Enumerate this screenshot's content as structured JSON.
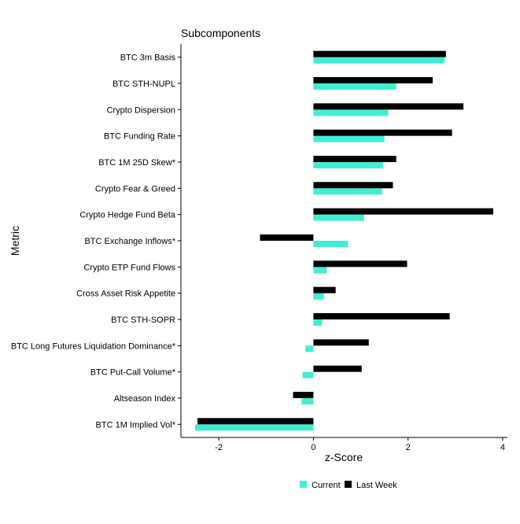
{
  "chart_data": {
    "type": "bar",
    "orientation": "horizontal",
    "title": "Subcomponents",
    "xlabel": "z-Score",
    "ylabel": "Metric",
    "xlim": [
      -2.8,
      4.1
    ],
    "xticks": [
      -2,
      0,
      2,
      4
    ],
    "tick_labels": [
      "-2",
      "0",
      "2",
      "4"
    ],
    "grid": false,
    "legend_position": "bottom",
    "categories": [
      "BTC 3m Basis",
      "BTC STH-NUPL",
      "Crypto Dispersion",
      "BTC Funding Rate",
      "BTC 1M 25D Skew*",
      "Crypto Fear & Greed",
      "Crypto Hedge Fund Beta",
      "BTC Exchange Inflows*",
      "Crypto ETP Fund Flows",
      "Cross Asset Risk Appetite",
      "BTC STH-SOPR",
      "BTC Long Futures Liquidation Dominance*",
      "BTC Put-Call Volume*",
      "Altseason Index",
      "BTC 1M Implied Vol*"
    ],
    "series": [
      {
        "name": "Current",
        "color": "#40EFD1",
        "values": [
          2.77,
          1.75,
          1.58,
          1.5,
          1.47,
          1.45,
          1.07,
          0.73,
          0.28,
          0.22,
          0.18,
          -0.17,
          -0.23,
          -0.25,
          -2.5
        ]
      },
      {
        "name": "Last Week",
        "color": "#000000",
        "values": [
          2.8,
          2.52,
          3.17,
          2.93,
          1.75,
          1.68,
          3.8,
          -1.13,
          1.98,
          0.47,
          2.88,
          1.17,
          1.02,
          -0.43,
          -2.45
        ]
      }
    ]
  }
}
